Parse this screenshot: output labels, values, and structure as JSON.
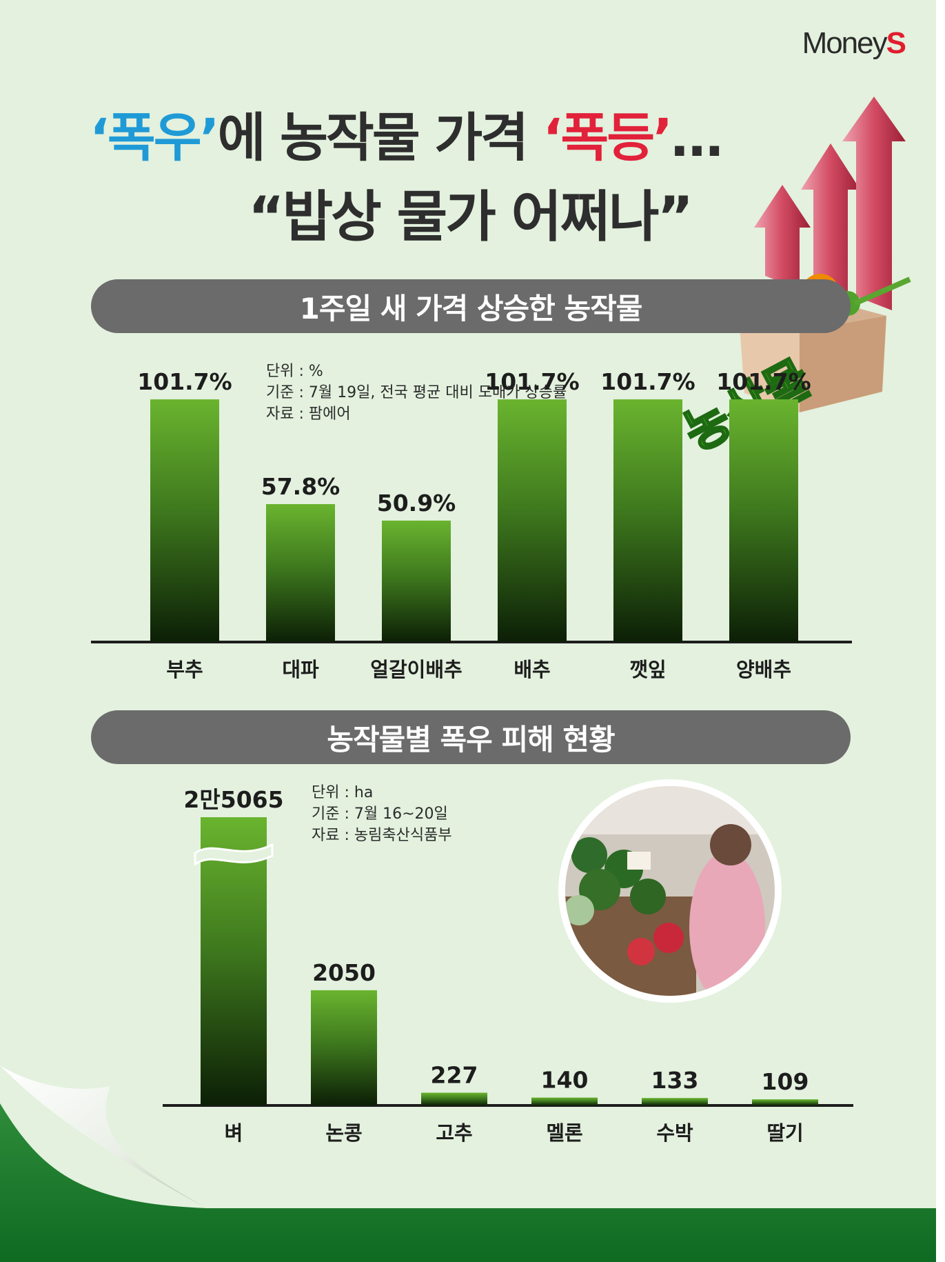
{
  "logo": {
    "text": "Money",
    "accent": "S"
  },
  "title": {
    "line1": [
      {
        "text": "‘폭우’",
        "tone": "blue"
      },
      {
        "text": "에 농작물 가격 ",
        "tone": "dark"
      },
      {
        "text": "‘폭등’",
        "tone": "red"
      },
      {
        "text": "…",
        "tone": "dark"
      }
    ],
    "line2": "“밥상 물가 어쩌나”"
  },
  "decor": {
    "box_label": "농산물"
  },
  "colors": {
    "background": "#e3f1de",
    "banner": "#6b6b6b",
    "bar_top": "#6ab42f",
    "bar_bottom": "#0c1f06",
    "title_blue": "#1f9ad6",
    "title_red": "#e2213a",
    "arrow": "#c8435c"
  },
  "sections": [
    {
      "banner": "1주일 새 가격 상승한 농작물",
      "notes": [
        "단위 : %",
        "기준 : 7월 19일, 전국 평균 대비 도매가 상승률",
        "자료 : 팜에어"
      ]
    },
    {
      "banner": "농작물별 폭우 피해 현황",
      "notes": [
        "단위 : ha",
        "기준 : 7월 16~20일",
        "자료 : 농림축산식품부"
      ]
    }
  ],
  "chart_data": [
    {
      "type": "bar",
      "title": "1주일 새 가격 상승한 농작물",
      "unit": "%",
      "categories": [
        "부추",
        "대파",
        "얼갈이배추",
        "배추",
        "깻잎",
        "양배추"
      ],
      "values": [
        101.7,
        57.8,
        50.9,
        101.7,
        101.7,
        101.7
      ],
      "labels": [
        "101.7%",
        "57.8%",
        "50.9%",
        "101.7%",
        "101.7%",
        "101.7%"
      ],
      "grid": false,
      "legend": "none"
    },
    {
      "type": "bar",
      "title": "농작물별 폭우 피해 현황",
      "unit": "ha",
      "categories": [
        "벼",
        "논콩",
        "고추",
        "멜론",
        "수박",
        "딸기"
      ],
      "values": [
        25065,
        2050,
        227,
        140,
        133,
        109
      ],
      "labels": [
        "2만5065",
        "2050",
        "227",
        "140",
        "133",
        "109"
      ],
      "axis_break_on": "벼",
      "grid": false,
      "legend": "none"
    }
  ]
}
